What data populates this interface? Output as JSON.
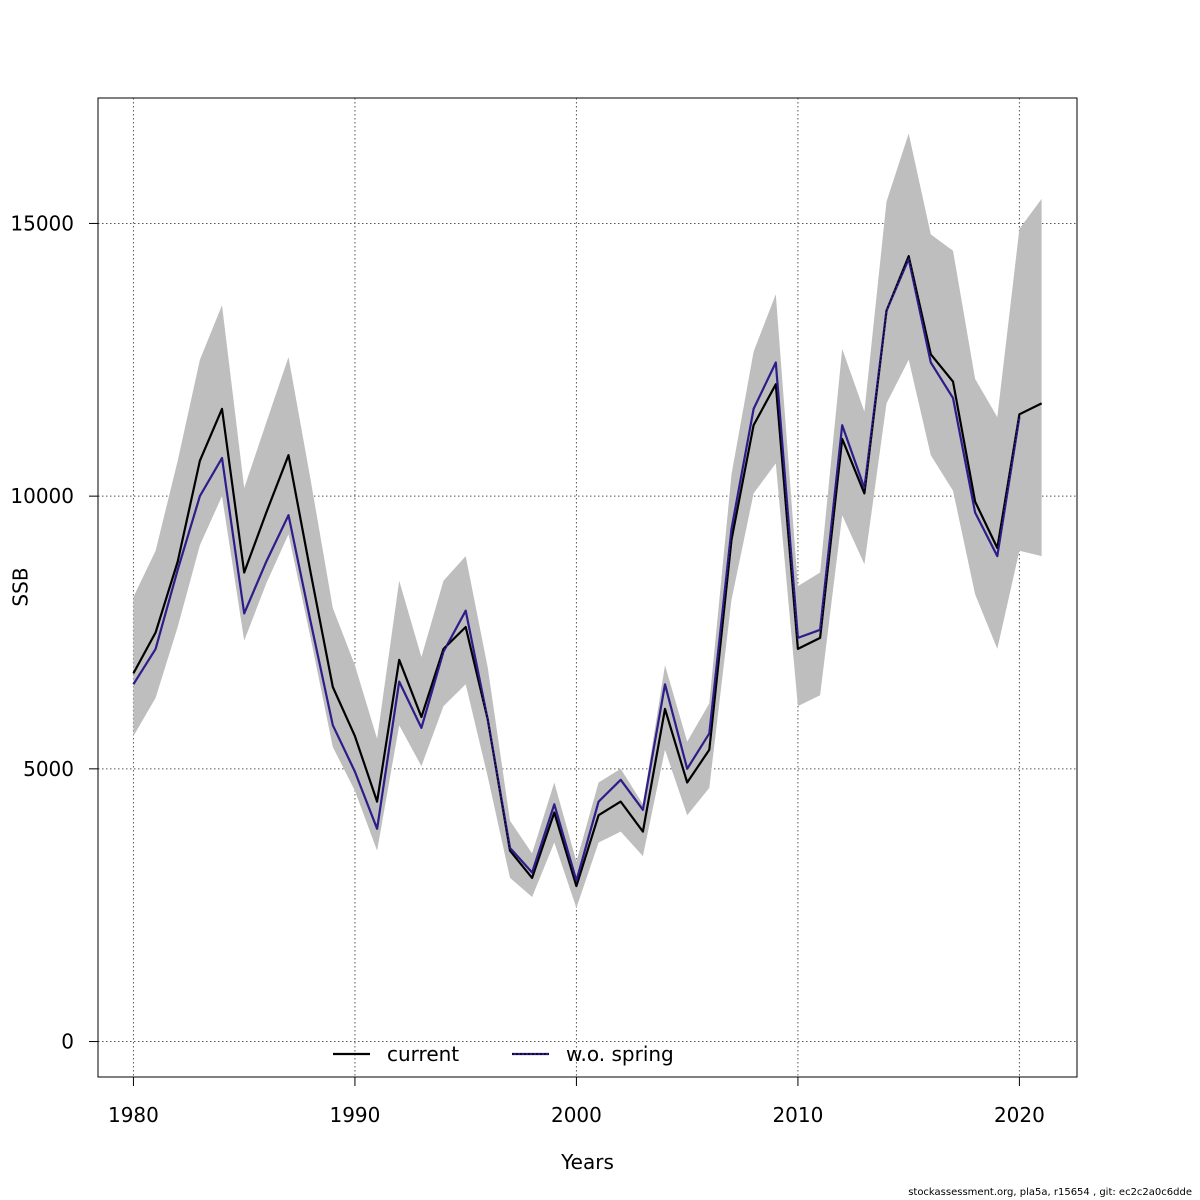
{
  "chart_data": {
    "type": "line",
    "title": "",
    "xlabel": "Years",
    "ylabel": "SSB",
    "xlim": [
      1978.4,
      2022.6
    ],
    "ylim": [
      -650,
      17300
    ],
    "xticks": [
      1980,
      1990,
      2000,
      2010,
      2020
    ],
    "yticks": [
      0,
      5000,
      10000,
      15000
    ],
    "xtick_labels": [
      "1980",
      "1990",
      "2000",
      "2010",
      "2020"
    ],
    "ytick_labels": [
      "0",
      "5000",
      "10000",
      "15000"
    ],
    "grid": true,
    "legend_position": "bottom-center",
    "x": [
      1980,
      1981,
      1982,
      1983,
      1984,
      1985,
      1986,
      1987,
      1988,
      1989,
      1990,
      1991,
      1992,
      1993,
      1994,
      1995,
      1996,
      1997,
      1998,
      1999,
      2000,
      2001,
      2002,
      2003,
      2004,
      2005,
      2006,
      2007,
      2008,
      2009,
      2010,
      2011,
      2012,
      2013,
      2014,
      2015,
      2016,
      2017,
      2018,
      2019,
      2020,
      2021
    ],
    "series": [
      {
        "name": "current",
        "color": "#000000",
        "line_style": "solid",
        "values": [
          6750,
          7500,
          8800,
          10650,
          11600,
          8600,
          9700,
          10750,
          8600,
          6500,
          5600,
          4400,
          7000,
          5950,
          7200,
          7600,
          5900,
          3500,
          3000,
          4200,
          2850,
          4150,
          4400,
          3850,
          6100,
          4750,
          5350,
          9200,
          11300,
          12050,
          7200,
          7400,
          11050,
          10050,
          13400,
          14400,
          12600,
          12100,
          9900,
          9050,
          11500,
          11700
        ],
        "band_low": [
          5600,
          6300,
          7600,
          9100,
          10000,
          7350,
          8400,
          9300,
          7400,
          5400,
          4600,
          3500,
          5800,
          5050,
          6150,
          6550,
          4850,
          3000,
          2650,
          3650,
          2450,
          3650,
          3850,
          3400,
          5350,
          4150,
          4650,
          8100,
          10050,
          10600,
          6150,
          6350,
          9650,
          8750,
          11700,
          12500,
          10750,
          10100,
          8200,
          7200,
          9000,
          8900
        ],
        "band_high": [
          8150,
          9000,
          10650,
          12500,
          13500,
          10150,
          11350,
          12550,
          10300,
          7950,
          6900,
          5550,
          8450,
          7050,
          8450,
          8900,
          6850,
          4050,
          3450,
          4750,
          3300,
          4750,
          5000,
          4350,
          6900,
          5500,
          6200,
          10400,
          12650,
          13700,
          8350,
          8600,
          12700,
          11550,
          15400,
          16650,
          14800,
          14500,
          12150,
          11450,
          14900,
          15450
        ]
      },
      {
        "name": "w.o. spring",
        "color": "#2b1d8a",
        "line_style": "solid",
        "values": [
          6550,
          7200,
          8650,
          10000,
          10700,
          7850,
          8800,
          9650,
          7700,
          5800,
          4950,
          3900,
          6600,
          5750,
          7150,
          7900,
          5900,
          3550,
          3100,
          4350,
          2950,
          4400,
          4800,
          4250,
          6550,
          5000,
          5650,
          9400,
          11600,
          12450,
          7400,
          7550,
          11300,
          10150,
          13400,
          14350,
          12450,
          11800,
          9700,
          8900,
          11450,
          null
        ]
      }
    ]
  },
  "footer": "stockassessment.org, pla5a, r15654 , git: ec2c2a0c6dde"
}
